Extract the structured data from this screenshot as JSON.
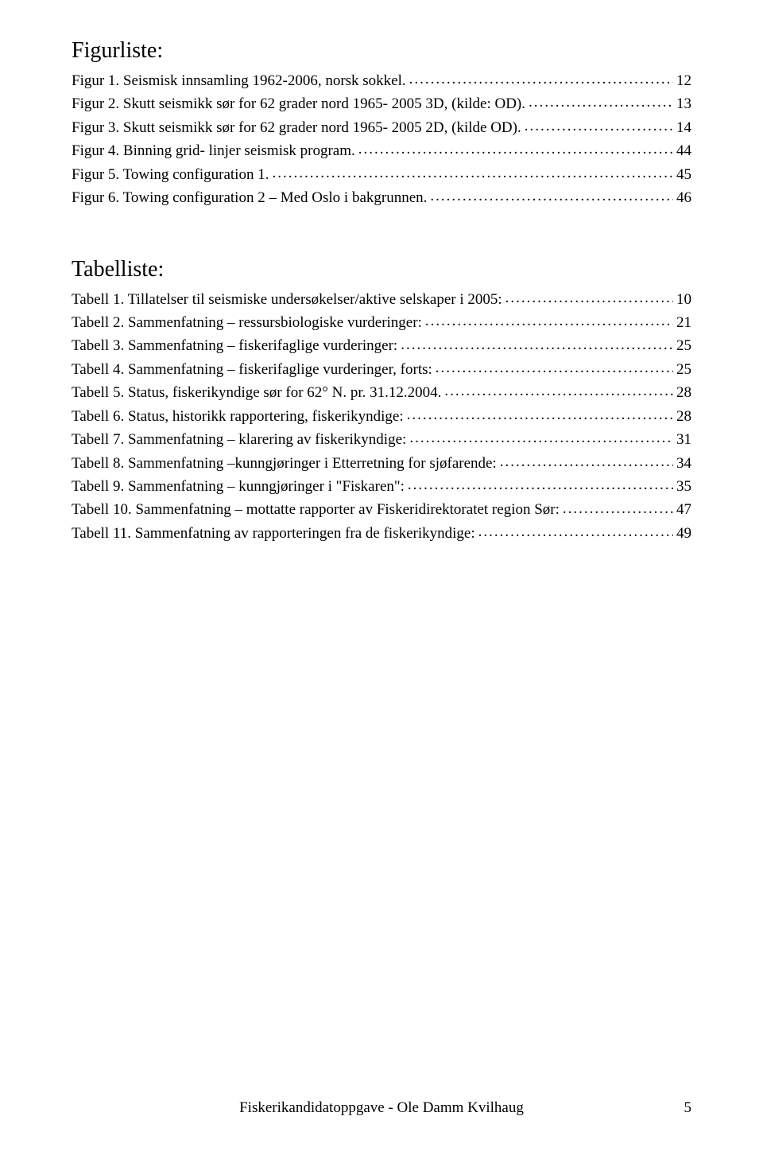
{
  "figurliste": {
    "heading": "Figurliste:",
    "items": [
      {
        "label": "Figur 1. Seismisk innsamling 1962-2006, norsk sokkel.",
        "page": "12"
      },
      {
        "label": "Figur 2. Skutt seismikk sør for 62 grader nord 1965- 2005 3D, (kilde: OD).",
        "page": "13"
      },
      {
        "label": "Figur 3. Skutt seismikk sør for 62 grader nord 1965- 2005 2D,  (kilde OD).",
        "page": "14"
      },
      {
        "label": "Figur 4. Binning grid- linjer seismisk program.",
        "page": "44"
      },
      {
        "label": "Figur 5. Towing configuration 1. ",
        "page": "45"
      },
      {
        "label": "Figur 6. Towing configuration 2 – Med Oslo i bakgrunnen. ",
        "page": "46"
      }
    ]
  },
  "tabelliste": {
    "heading": "Tabelliste:",
    "items": [
      {
        "label": "Tabell 1. Tillatelser til seismiske undersøkelser/aktive selskaper i 2005: ",
        "page": "10"
      },
      {
        "label": "Tabell 2. Sammenfatning – ressursbiologiske vurderinger:",
        "page": "21"
      },
      {
        "label": "Tabell 3. Sammenfatning – fiskerifaglige vurderinger: ",
        "page": "25"
      },
      {
        "label": "Tabell 4. Sammenfatning – fiskerifaglige vurderinger, forts: ",
        "page": "25"
      },
      {
        "label": "Tabell 5.  Status, fiskerikyndige sør for 62° N. pr. 31.12.2004. ",
        "page": "28"
      },
      {
        "label": "Tabell 6.  Status,  historikk rapportering, fiskerikyndige:",
        "page": "28"
      },
      {
        "label": "Tabell 7. Sammenfatning – klarering av fiskerikyndige: ",
        "page": "31"
      },
      {
        "label": "Tabell 8. Sammenfatning –kunngjøringer i Etterretning for sjøfarende: ",
        "page": "34"
      },
      {
        "label": "Tabell 9. Sammenfatning – kunngjøringer i \"Fiskaren\": ",
        "page": "35"
      },
      {
        "label": "Tabell 10. Sammenfatning – mottatte rapporter av Fiskeridirektoratet region Sør: ",
        "page": "47"
      },
      {
        "label": "Tabell 11. Sammenfatning av rapporteringen fra de fiskerikyndige: ",
        "page": "49"
      }
    ]
  },
  "footer": {
    "center": "Fiskerikandidatoppgave - Ole Damm Kvilhaug",
    "pageno": "5"
  }
}
